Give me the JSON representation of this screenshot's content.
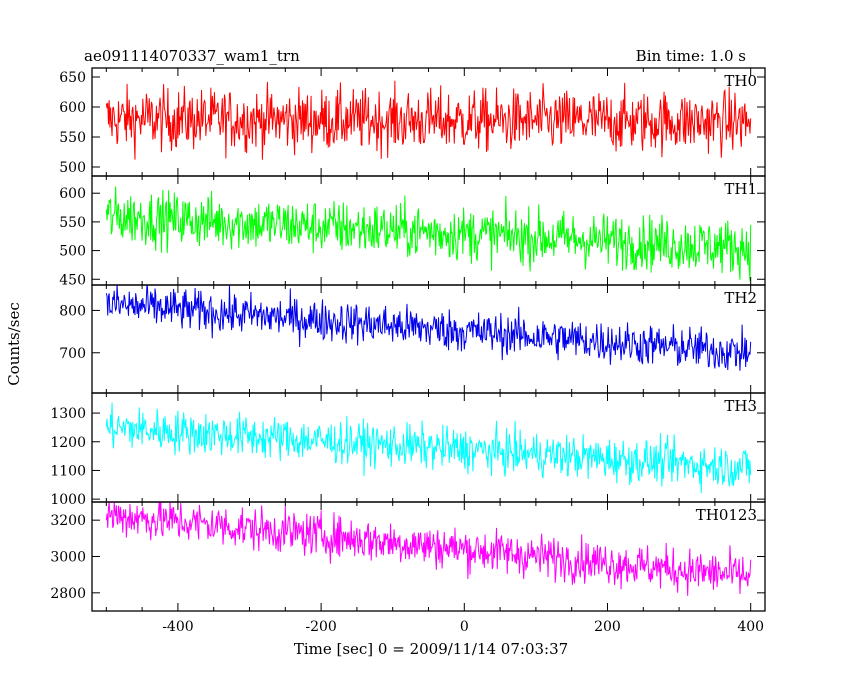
{
  "chart_data": {
    "type": "line",
    "title": "ae091114070337_wam1_trn",
    "subtitle": "Bin time: 1.0 s",
    "xlabel": "Time [sec] 0 = 2009/11/14 07:03:37",
    "ylabel": "Counts/sec",
    "xlim": [
      -520,
      420
    ],
    "x_ticks": [
      "-400",
      "-200",
      "0",
      "200",
      "400"
    ],
    "x_tick_values": [
      -400,
      -200,
      0,
      200,
      400
    ],
    "x_start": -500,
    "x_end": 400,
    "bin_s": 1.0,
    "grid": false,
    "panels": [
      {
        "name": "TH0",
        "color": "#ff0000",
        "ylim": [
          485,
          665
        ],
        "y_ticks": [
          500,
          550,
          600,
          650
        ],
        "trend": [
          [
            -500,
            580
          ],
          [
            400,
            575
          ]
        ],
        "noise": 26
      },
      {
        "name": "TH1",
        "color": "#00ff00",
        "ylim": [
          440,
          630
        ],
        "y_ticks": [
          450,
          500,
          550,
          600
        ],
        "trend": [
          [
            -500,
            560
          ],
          [
            400,
            505
          ]
        ],
        "noise": 24
      },
      {
        "name": "TH2",
        "color": "#0000ee",
        "ylim": [
          605,
          860
        ],
        "y_ticks": [
          700,
          800
        ],
        "trend": [
          [
            -500,
            815
          ],
          [
            400,
            700
          ]
        ],
        "noise": 25
      },
      {
        "name": "TH3",
        "color": "#00ffff",
        "ylim": [
          990,
          1370
        ],
        "y_ticks": [
          1000,
          1100,
          1200,
          1300
        ],
        "trend": [
          [
            -500,
            1250
          ],
          [
            400,
            1110
          ]
        ],
        "noise": 38
      },
      {
        "name": "TH0123",
        "color": "#ff00ff",
        "ylim": [
          2700,
          3300
        ],
        "y_ticks": [
          2800,
          3000,
          3200
        ],
        "trend": [
          [
            -500,
            3230
          ],
          [
            400,
            2890
          ]
        ],
        "noise": 60
      }
    ]
  }
}
